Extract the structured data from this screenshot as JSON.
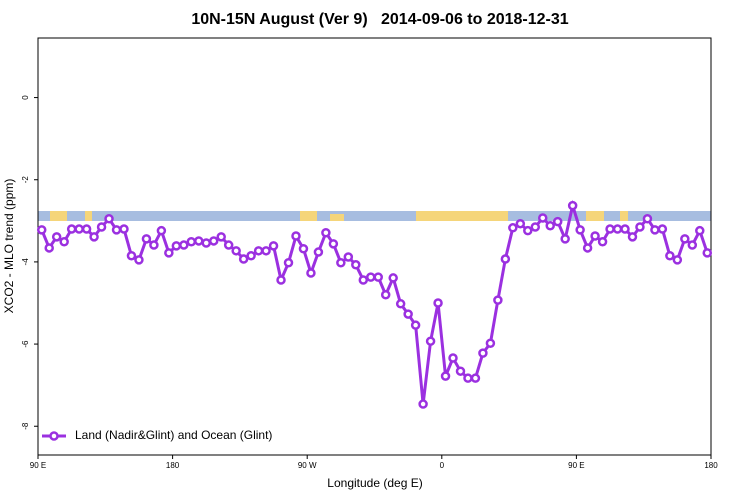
{
  "chart_data": {
    "type": "line",
    "title": "10N-15N August (Ver 9)   2014-09-06 to 2018-12-31",
    "x_label": "Longitude (deg E)",
    "y_label": "XCO2 - MLO trend (ppm)",
    "xlim": [
      90,
      540
    ],
    "ylim": [
      -8.7,
      1.45
    ],
    "xticks": [
      {
        "value": 90,
        "label": "90 E"
      },
      180,
      {
        "value": 270,
        "label": "90 W"
      },
      {
        "value": 360,
        "label": "0"
      },
      {
        "value": 450,
        "label": "90 E"
      },
      {
        "value": 540,
        "label": "180"
      }
    ],
    "yticks": [
      0,
      -2,
      -4,
      -6,
      -8
    ],
    "legend": "bottom-left",
    "x": [
      92.5,
      97.5,
      102.5,
      107.5,
      112.5,
      117.5,
      122.5,
      127.5,
      132.5,
      137.5,
      142.5,
      147.5,
      152.5,
      157.5,
      162.5,
      167.5,
      172.5,
      177.5,
      182.5,
      187.5,
      192.5,
      197.5,
      202.5,
      207.5,
      212.5,
      217.5,
      222.5,
      227.5,
      232.5,
      237.5,
      242.5,
      247.5,
      252.5,
      257.5,
      262.5,
      267.5,
      272.5,
      277.5,
      282.5,
      287.5,
      292.5,
      297.5,
      302.5,
      307.5,
      312.5,
      317.5,
      322.5,
      327.5,
      332.5,
      337.5,
      342.5,
      347.5,
      352.5,
      357.5,
      362.5,
      367.5,
      372.5,
      377.5,
      382.5,
      387.5,
      392.5,
      397.5,
      402.5,
      407.5,
      412.5,
      417.5,
      422.5,
      427.5,
      432.5,
      437.5,
      442.5,
      447.5,
      452.5,
      457.5,
      462.5,
      467.5,
      472.5,
      477.5,
      482.5,
      487.5,
      492.5,
      497.5,
      502.5,
      507.5,
      512.5,
      517.5,
      522.5,
      527.5,
      532.5,
      537.5
    ],
    "series": [
      {
        "name": "Land (Nadir&Glint) and Ocean (Glint)",
        "color": "#9b30e0",
        "values": [
          -3.22,
          -3.66,
          -3.39,
          -3.51,
          -3.2,
          -3.2,
          -3.2,
          -3.39,
          -3.15,
          -2.95,
          -3.22,
          -3.2,
          -3.85,
          -3.95,
          -3.44,
          -3.59,
          -3.24,
          -3.78,
          -3.61,
          -3.59,
          -3.51,
          -3.49,
          -3.54,
          -3.49,
          -3.39,
          -3.59,
          -3.73,
          -3.93,
          -3.85,
          -3.73,
          -3.73,
          -3.61,
          -4.44,
          -4.02,
          -3.37,
          -3.68,
          -4.27,
          -3.76,
          -3.29,
          -3.56,
          -4.02,
          -3.88,
          -4.07,
          -4.44,
          -4.37,
          -4.37,
          -4.8,
          -4.39,
          -5.02,
          -5.27,
          -5.54,
          -7.46,
          -5.93,
          -5.0,
          -6.78,
          -6.34,
          -6.66,
          -6.83,
          -6.83,
          -6.22,
          -5.98,
          -4.93,
          -3.93,
          -3.17,
          -3.07,
          -3.24,
          -3.15,
          -2.93,
          -3.12,
          -3.02,
          -3.44,
          -2.63,
          -3.22,
          -3.66,
          -3.37,
          -3.51,
          -3.2,
          -3.2,
          -3.2,
          -3.39,
          -3.15,
          -2.95,
          -3.22,
          -3.2,
          -3.85,
          -3.95,
          -3.44,
          -3.59,
          -3.24,
          -3.78
        ]
      }
    ]
  }
}
